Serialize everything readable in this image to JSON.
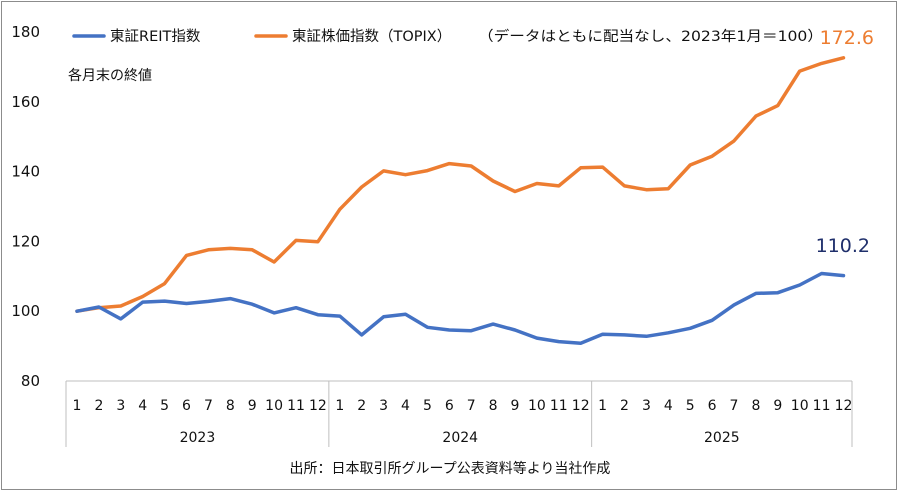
{
  "chart_data": {
    "type": "line",
    "title": "",
    "subtitle": "各月末の終値",
    "note": "（データはともに配当なし、2023年1月＝100）",
    "source": "出所：日本取引所グループ公表資料等より当社作成",
    "xlabel": "",
    "ylabel": "",
    "ylim": [
      80,
      180
    ],
    "yticks": [
      "80",
      "100",
      "120",
      "140",
      "160",
      "180"
    ],
    "x_month_labels": [
      "1",
      "2",
      "3",
      "4",
      "5",
      "6",
      "7",
      "8",
      "9",
      "10",
      "11",
      "12",
      "1",
      "2",
      "3",
      "4",
      "5",
      "6",
      "7",
      "8",
      "9",
      "10",
      "11",
      "12",
      "1",
      "2",
      "3",
      "4",
      "5",
      "6",
      "7",
      "8",
      "9",
      "10",
      "11",
      "12"
    ],
    "x_year_labels": [
      "2023",
      "2024",
      "2025"
    ],
    "legend_position": "top",
    "grid": false,
    "series": [
      {
        "name": "東証REIT指数",
        "color": "#4472c4",
        "end_label": "110.2",
        "end_label_color": "#1f2f6b",
        "values": [
          100,
          101.2,
          97.8,
          102.6,
          102.9,
          102.2,
          102.8,
          103.6,
          102.0,
          99.5,
          101.0,
          99.0,
          98.6,
          93.2,
          98.4,
          99.1,
          95.4,
          94.6,
          94.4,
          96.3,
          94.6,
          92.3,
          91.3,
          90.8,
          93.4,
          93.2,
          92.8,
          93.8,
          95.1,
          97.4,
          101.8,
          105.1,
          105.3,
          107.5,
          110.8,
          110.2
        ]
      },
      {
        "name": "東証株価指数（TOPIX）",
        "color": "#ed7d31",
        "end_label": "172.6",
        "end_label_color": "#ed7d31",
        "values": [
          100,
          101.0,
          101.5,
          104.2,
          107.9,
          116.0,
          117.6,
          118.0,
          117.6,
          114.1,
          120.3,
          119.9,
          129.2,
          135.6,
          140.2,
          139.1,
          140.3,
          142.3,
          141.6,
          137.3,
          134.3,
          136.6,
          135.9,
          141.1,
          141.3,
          135.9,
          134.8,
          135.1,
          141.9,
          144.4,
          148.8,
          155.9,
          158.9,
          168.8,
          171.0,
          172.6
        ]
      }
    ]
  }
}
